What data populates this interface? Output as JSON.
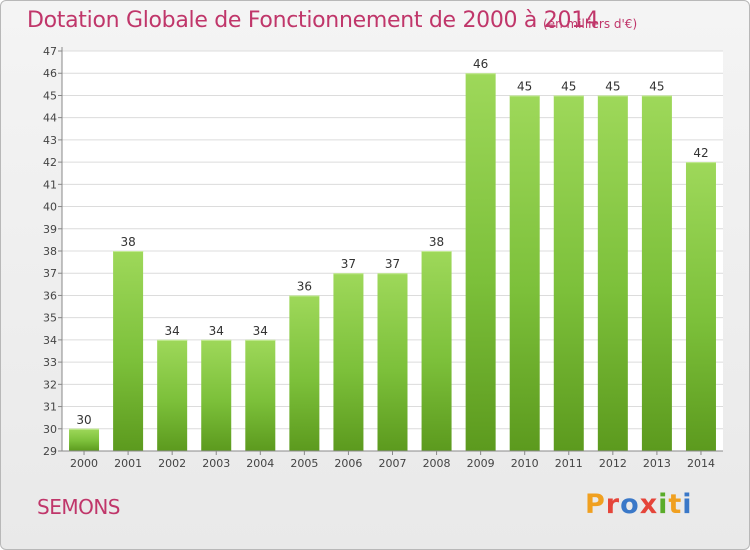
{
  "header": {
    "title": "Dotation Globale de Fonctionnement de 2000 à 2014",
    "subtitle": "(en milliers d'€)"
  },
  "footer": {
    "commune": "SEMONS",
    "logo_letters": [
      "P",
      "r",
      "o",
      "x",
      "i",
      "t",
      "i"
    ],
    "logo_colors": [
      "#f0a020",
      "#e5453a",
      "#3a78c8",
      "#e5453a",
      "#5aac2a",
      "#f0a020",
      "#3a78c8"
    ]
  },
  "chart_data": {
    "type": "bar",
    "categories": [
      "2000",
      "2001",
      "2002",
      "2003",
      "2004",
      "2005",
      "2006",
      "2007",
      "2008",
      "2009",
      "2010",
      "2011",
      "2012",
      "2013",
      "2014"
    ],
    "values": [
      30,
      38,
      34,
      34,
      34,
      36,
      37,
      37,
      38,
      46,
      45,
      45,
      45,
      45,
      42
    ],
    "data_labels": [
      "30",
      "38",
      "34",
      "34",
      "34",
      "36",
      "37",
      "37",
      "38",
      "46",
      "45",
      "45",
      "45",
      "45",
      "42"
    ],
    "y_ticks": [
      "29",
      "30",
      "31",
      "32",
      "33",
      "34",
      "35",
      "36",
      "37",
      "38",
      "39",
      "40",
      "41",
      "42",
      "43",
      "44",
      "45",
      "46",
      "47"
    ],
    "ylim": [
      29,
      47
    ],
    "grid": true,
    "bar_color": "#7cc03a",
    "bar_color_light": "#9ed85a",
    "bar_color_dark": "#5c9a1e"
  }
}
